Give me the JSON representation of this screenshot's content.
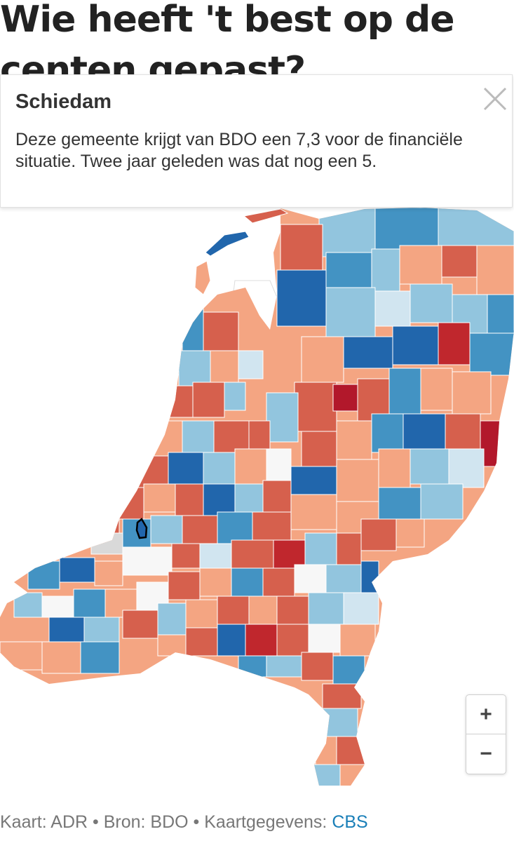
{
  "headline": "Wie heeft 't best op de centen gepast?",
  "tooltip": {
    "title": "Schiedam",
    "body": "Deze gemeente krijgt van BDO een 7,3 voor de financiële situatie. Twee jaar geleden was dat nog een 5.",
    "close_icon": "close-icon"
  },
  "map": {
    "selected_municipality": "Schiedam",
    "legend_colors": {
      "dark_red": "#c0272d",
      "red": "#d6604d",
      "salmon": "#f4a582",
      "light": "#f7f7f7",
      "light_blue": "#92c5de",
      "blue": "#4393c3",
      "dark_blue": "#2166ac",
      "no_data": "#d9d9d9"
    }
  },
  "zoom": {
    "in_label": "+",
    "out_label": "−"
  },
  "footer": {
    "map_credit": "Kaart: ADR",
    "separator": " • ",
    "source": "Bron: BDO",
    "map_data_prefix": "Kaartgegevens: ",
    "map_data_link": "CBS"
  }
}
